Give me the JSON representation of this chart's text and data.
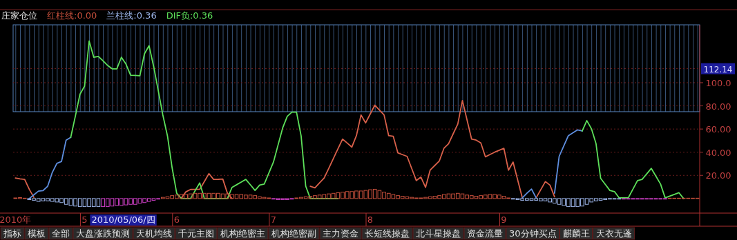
{
  "chart_data": {
    "type": "line",
    "title": "庄家仓位",
    "legend": "top left",
    "categories": [
      "2010年",
      null,
      null,
      null,
      null,
      null,
      null,
      null,
      null,
      null,
      null,
      null,
      null,
      null,
      null,
      "5",
      null,
      null,
      null,
      null,
      null,
      null,
      null,
      null,
      null,
      null,
      null,
      null,
      null,
      null,
      null,
      null,
      null,
      null,
      null,
      "6",
      null,
      null,
      null,
      null,
      null,
      null,
      null,
      null,
      null,
      null,
      null,
      null,
      null,
      null,
      null,
      null,
      null,
      null,
      null,
      null,
      "7",
      null,
      null,
      null,
      null,
      null,
      null,
      null,
      null,
      null,
      null,
      null,
      null,
      null,
      null,
      null,
      null,
      null,
      null,
      null,
      null,
      "8",
      null,
      null,
      null,
      null,
      null,
      null,
      null,
      null,
      null,
      null,
      null,
      null,
      null,
      null,
      null,
      null,
      null,
      null,
      null,
      null,
      null,
      null,
      null,
      null,
      null,
      null,
      null,
      null,
      "9",
      null,
      null,
      null,
      null,
      null,
      null,
      null,
      null,
      null,
      null,
      null,
      null,
      null,
      null,
      null,
      null,
      null,
      null,
      null,
      null,
      null,
      null,
      null,
      null,
      null,
      null,
      null,
      null,
      null,
      null,
      null,
      null,
      null,
      null,
      null,
      null,
      null,
      null,
      null,
      null,
      null,
      null
    ],
    "ylim": [
      -12,
      150
    ],
    "yticks": [
      {
        "value": 20,
        "label": "20.00"
      },
      {
        "value": 40,
        "label": "40.00"
      },
      {
        "value": 60,
        "label": "60.00"
      },
      {
        "value": 80,
        "label": "80.00"
      },
      {
        "value": 100,
        "label": "100.0"
      }
    ],
    "grid": "y",
    "ref_lines": [
      {
        "axis": "y",
        "value": 112.14,
        "label": "112.14"
      }
    ],
    "bands": [
      {
        "axis": "y",
        "from": 75,
        "to": 150,
        "color": "#5580b8"
      }
    ],
    "series": [
      {
        "name": "红柱线:0.00",
        "type": "bar",
        "color": "#c8503c",
        "values": [
          0.5,
          0.8,
          0.3,
          null,
          null,
          null,
          null,
          null,
          null,
          null,
          null,
          null,
          null,
          null,
          null,
          null,
          null,
          null,
          null,
          null,
          null,
          null,
          null,
          null,
          null,
          null,
          null,
          null,
          null,
          null,
          null,
          null,
          1,
          1.5,
          2.5,
          3,
          3.5,
          3.5,
          4,
          4.5,
          4.5,
          4.5,
          4.5,
          4.5,
          4.5,
          4,
          4,
          3.5,
          3.5,
          3.5,
          3,
          3,
          2.5,
          1.5,
          1,
          0.5,
          null,
          null,
          null,
          null,
          null,
          0.5,
          1,
          1.5,
          2,
          2.5,
          3,
          3.5,
          4,
          4.5,
          5,
          5.5,
          6,
          6,
          6.5,
          6.5,
          7,
          7.6,
          8,
          7,
          5.5,
          4.5,
          3.5,
          2.5,
          2,
          1.5,
          1,
          0.5,
          0.5,
          1,
          1.5,
          2,
          2.5,
          3.5,
          4,
          4,
          4.5,
          4,
          3,
          2.5,
          2,
          2.5,
          3,
          3.5,
          3.5,
          3,
          2,
          0.5,
          null,
          null,
          null,
          null,
          null,
          null,
          null,
          null,
          null,
          null,
          null,
          null,
          null,
          null,
          null,
          null,
          null,
          null,
          null,
          null,
          null,
          null,
          null,
          null,
          null,
          null,
          null,
          null,
          null,
          null,
          null,
          null,
          null,
          null,
          0.3,
          0.3,
          0.3,
          0.3,
          0.3,
          0.3,
          0.3
        ]
      },
      {
        "name": "兰柱线:0.36",
        "type": "bar",
        "color": "#9cb4e8",
        "values": [
          null,
          null,
          null,
          -1,
          -1.5,
          -2.5,
          -2,
          -2,
          -2.5,
          -3,
          -3.5,
          -5,
          -6,
          -6.5,
          -7,
          -7,
          -7,
          -7,
          -7,
          null,
          null,
          null,
          null,
          null,
          null,
          null,
          null,
          null,
          null,
          null,
          null,
          null,
          null,
          null,
          null,
          null,
          null,
          null,
          null,
          null,
          null,
          null,
          null,
          null,
          null,
          null,
          null,
          null,
          null,
          null,
          null,
          null,
          null,
          null,
          null,
          null,
          null,
          null,
          null,
          null,
          null,
          null,
          null,
          null,
          null,
          null,
          null,
          null,
          null,
          null,
          null,
          null,
          null,
          null,
          null,
          null,
          null,
          null,
          null,
          null,
          null,
          null,
          null,
          null,
          null,
          null,
          null,
          null,
          null,
          null,
          null,
          null,
          null,
          null,
          null,
          null,
          null,
          null,
          null,
          null,
          null,
          null,
          null,
          null,
          null,
          null,
          null,
          null,
          -0.5,
          -1,
          -1.5,
          -1.5,
          -1.5,
          -1.5,
          -2,
          -2,
          -3,
          -4,
          -5,
          -6,
          -7,
          -7,
          -7,
          -6.5,
          -5,
          -3,
          -2,
          -1.5,
          -1,
          -0.5,
          -0.5,
          -0.5,
          null,
          null,
          null,
          null,
          null,
          null,
          null,
          null,
          null,
          null,
          null,
          null,
          null,
          null,
          null,
          null,
          null
        ]
      },
      {
        "type": "bar",
        "color": "#d040c8",
        "values": [
          null,
          null,
          null,
          null,
          null,
          null,
          null,
          null,
          null,
          null,
          null,
          null,
          null,
          null,
          null,
          null,
          null,
          null,
          null,
          -7,
          -7,
          -6.5,
          -6,
          -6,
          -5.5,
          -5,
          -5,
          -4,
          -3.5,
          -2.5,
          -1.5,
          -0.5,
          null,
          null,
          null,
          null,
          null,
          null,
          null,
          null,
          null,
          null,
          null,
          null,
          null,
          null,
          null,
          null,
          null,
          null,
          null,
          null,
          null,
          null,
          null,
          null,
          -0.5,
          -1,
          -1,
          -1,
          -0.5,
          null,
          null,
          null,
          null,
          null,
          null,
          null,
          null,
          null,
          null,
          null,
          null,
          null,
          null,
          null,
          null,
          null,
          null,
          null,
          null,
          null,
          null,
          null,
          null,
          null,
          null,
          null,
          null,
          null,
          null,
          null,
          null,
          null,
          null,
          null,
          null,
          null,
          null,
          null,
          null,
          null,
          null,
          null,
          null,
          null,
          null,
          null,
          null,
          null,
          null,
          null,
          null,
          null,
          null,
          null,
          null,
          null,
          null,
          null,
          null,
          null,
          null,
          null,
          null,
          null,
          null,
          null,
          null,
          null,
          null,
          null,
          -0.5,
          -0.5,
          -0.5,
          -0.5,
          -0.5,
          -0.5,
          -0.5,
          -0.5,
          -0.5,
          -0.5,
          null,
          null,
          null,
          null,
          null,
          null,
          null
        ]
      },
      {
        "color": "#d8604a",
        "values": [
          17.7,
          17,
          16.5,
          8,
          1,
          null,
          null,
          null,
          null,
          null,
          null,
          null,
          null,
          null,
          null,
          null,
          null,
          null,
          null,
          null,
          null,
          null,
          null,
          null,
          null,
          null,
          null,
          null,
          null,
          null,
          null,
          null,
          null,
          null,
          null,
          null,
          0.5,
          5.8,
          7.8,
          7.9,
          8,
          14.7,
          21.5,
          16.5,
          16.6,
          16.8,
          4.6,
          0,
          null,
          null,
          null,
          null,
          null,
          null,
          null,
          null,
          null,
          null,
          null,
          null,
          null,
          null,
          null,
          null,
          10.6,
          9.2,
          13.5,
          17.7,
          26,
          34.5,
          43,
          51.3,
          47.9,
          44.4,
          54.3,
          72.2,
          65.3,
          73,
          80.6,
          76.4,
          72.2,
          54.3,
          53.7,
          39.4,
          37.9,
          36.4,
          26,
          15.5,
          18.5,
          9.6,
          24.5,
          28.5,
          32.5,
          43.4,
          47.4,
          55.9,
          64.3,
          84.6,
          68,
          51.3,
          50.4,
          48,
          36,
          38,
          40,
          41.7,
          43.4,
          24.5,
          31.5,
          16,
          0.6,
          null,
          null,
          0.6,
          7.6,
          14.6,
          11.6,
          1.5,
          null,
          null,
          null,
          null,
          null,
          null,
          null,
          null,
          null,
          null,
          null,
          null,
          null,
          null,
          null,
          null,
          null,
          null,
          null,
          null,
          null,
          null,
          null,
          null,
          null,
          null,
          null,
          null,
          null,
          null,
          null
        ]
      },
      {
        "color": "#5f8fe0",
        "values": [
          null,
          null,
          null,
          0,
          3.2,
          6.4,
          6.9,
          10.6,
          22.5,
          30.4,
          32,
          50.4,
          52.8,
          null,
          null,
          null,
          null,
          null,
          null,
          null,
          null,
          null,
          null,
          null,
          null,
          null,
          null,
          null,
          null,
          null,
          null,
          null,
          null,
          null,
          null,
          null,
          null,
          null,
          null,
          null,
          null,
          null,
          null,
          null,
          null,
          null,
          null,
          null,
          null,
          null,
          null,
          null,
          null,
          null,
          null,
          null,
          null,
          null,
          null,
          null,
          null,
          null,
          null,
          null,
          null,
          null,
          null,
          null,
          null,
          null,
          null,
          null,
          null,
          null,
          null,
          null,
          null,
          null,
          null,
          null,
          null,
          null,
          null,
          null,
          null,
          null,
          null,
          null,
          null,
          null,
          null,
          null,
          null,
          null,
          null,
          null,
          null,
          null,
          null,
          null,
          null,
          null,
          null,
          null,
          null,
          null,
          null,
          null,
          null,
          null,
          0.6,
          4.6,
          8.2,
          0.6,
          null,
          null,
          null,
          4.6,
          36.4,
          45.4,
          54.3,
          56.8,
          59.3,
          58.3,
          null,
          null,
          null,
          null,
          null,
          null,
          null,
          null,
          null,
          null,
          null,
          null,
          null,
          null,
          null,
          null,
          null,
          null,
          null,
          null,
          null,
          null,
          null,
          null,
          null
        ]
      },
      {
        "name": "DIF负:0.36",
        "color": "#5de05a",
        "values": [
          null,
          null,
          null,
          null,
          null,
          null,
          null,
          null,
          null,
          null,
          null,
          null,
          52.8,
          71,
          90,
          97,
          136,
          122,
          122.7,
          118.9,
          115,
          112,
          112,
          122,
          116,
          106.5,
          106.3,
          106,
          125,
          132,
          114,
          93,
          72,
          54,
          26.7,
          4.6,
          0,
          0,
          0,
          6.8,
          13.5,
          0,
          0,
          0,
          0,
          0,
          0,
          9.6,
          11.9,
          14.2,
          16.5,
          11.8,
          7,
          11.6,
          12.5,
          22,
          31.5,
          46.3,
          61,
          71,
          74.6,
          74.6,
          54,
          10.6,
          0,
          0,
          0,
          0,
          0,
          0,
          0,
          null,
          null,
          null,
          null,
          null,
          null,
          null,
          null,
          null,
          null,
          null,
          null,
          null,
          null,
          null,
          null,
          null,
          null,
          null,
          null,
          null,
          null,
          null,
          null,
          null,
          null,
          null,
          null,
          null,
          null,
          null,
          null,
          null,
          null,
          null,
          null,
          null,
          null,
          null,
          null,
          null,
          null,
          null,
          null,
          null,
          null,
          null,
          null,
          null,
          null,
          null,
          null,
          58.3,
          67.3,
          60.3,
          47.4,
          17.5,
          12.3,
          7,
          6,
          0.6,
          0.6,
          0.6,
          8,
          15.5,
          16.5,
          21.3,
          26,
          19.3,
          12.5,
          0.6,
          2.1,
          3.6,
          5,
          0,
          null,
          null,
          null
        ]
      }
    ],
    "annotations": [
      "2010/05/06/四",
      "指标",
      "模板",
      "全部",
      "大盘涨跌预测",
      "天机均线",
      "千元主图",
      "机构绝密主",
      "机构绝密副",
      "主力资金",
      "长短线操盘",
      "北斗星操盘",
      "资金流量",
      "30分钟买点",
      "麒麟王",
      "天衣无蓬"
    ]
  }
}
